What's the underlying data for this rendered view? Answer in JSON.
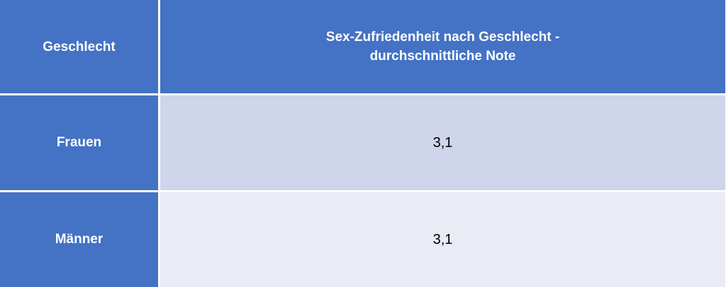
{
  "chart_data": {
    "type": "table",
    "columns": [
      "Geschlecht",
      "Sex-Zufriedenheit nach Geschlecht - durchschnittliche Note"
    ],
    "header": {
      "col1": "Geschlecht",
      "col2_line1": "Sex-Zufriedenheit nach Geschlecht -",
      "col2_line2": "durchschnittliche Note"
    },
    "rows": [
      {
        "label": "Frauen",
        "value": "3,1"
      },
      {
        "label": "Männer",
        "value": "3,1"
      }
    ]
  },
  "colors": {
    "header_blue": "#4472c4",
    "row_band_1": "#cfd5ea",
    "row_band_2": "#e9ebf5"
  }
}
